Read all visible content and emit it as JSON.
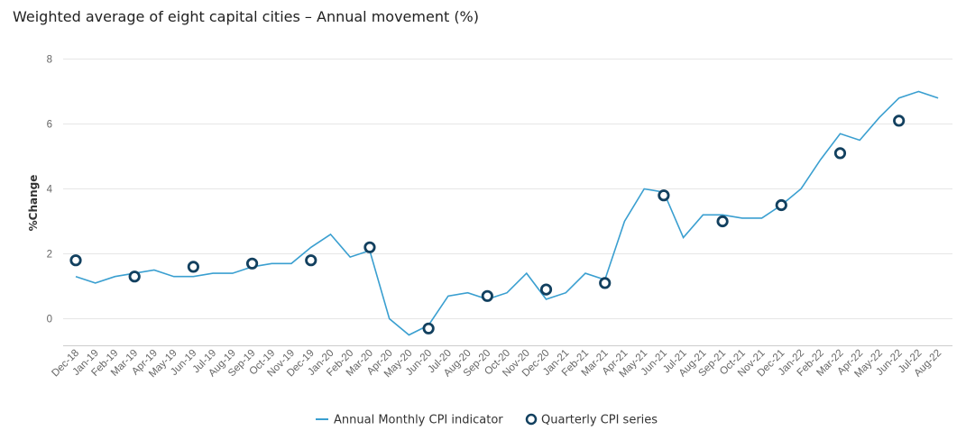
{
  "chart_data": {
    "type": "line",
    "title": "Weighted average of eight capital cities – Annual movement (%)",
    "xlabel": "",
    "ylabel": "%Change",
    "ylim": [
      -0.8,
      8
    ],
    "yticks": [
      0,
      2,
      4,
      6,
      8
    ],
    "grid": true,
    "legend_placement": "bottom-center",
    "categories": [
      "Dec-18",
      "Jan-19",
      "Feb-19",
      "Mar-19",
      "Apr-19",
      "May-19",
      "Jun-19",
      "Jul-19",
      "Aug-19",
      "Sep-19",
      "Oct-19",
      "Nov-19",
      "Dec-19",
      "Jan-20",
      "Feb-20",
      "Mar-20",
      "Apr-20",
      "May-20",
      "Jun-20",
      "Jul-20",
      "Aug-20",
      "Sep-20",
      "Oct-20",
      "Nov-20",
      "Dec-20",
      "Jan-21",
      "Feb-21",
      "Mar-21",
      "Apr-21",
      "May-21",
      "Jun-21",
      "Jul-21",
      "Aug-21",
      "Sep-21",
      "Oct-21",
      "Nov-21",
      "Dec-21",
      "Jan-22",
      "Feb-22",
      "Mar-22",
      "Apr-22",
      "May-22",
      "Jun-22",
      "Jul-22",
      "Aug-22"
    ],
    "series": [
      {
        "name": "Annual Monthly CPI indicator",
        "kind": "line",
        "color": "#3a9fd0",
        "values": [
          1.3,
          1.1,
          1.3,
          1.4,
          1.5,
          1.3,
          1.3,
          1.4,
          1.4,
          1.6,
          1.7,
          1.7,
          2.2,
          2.6,
          1.9,
          2.1,
          0.0,
          -0.5,
          -0.2,
          0.7,
          0.8,
          0.6,
          0.8,
          1.4,
          0.6,
          0.8,
          1.4,
          1.2,
          3.0,
          4.0,
          3.9,
          2.5,
          3.2,
          3.2,
          3.1,
          3.1,
          3.5,
          4.0,
          4.9,
          5.7,
          5.5,
          6.2,
          6.8,
          7.0,
          6.8
        ]
      },
      {
        "name": "Quarterly CPI series",
        "kind": "marker",
        "color": "#12405f",
        "points": [
          {
            "x": "Dec-18",
            "y": 1.8
          },
          {
            "x": "Mar-19",
            "y": 1.3
          },
          {
            "x": "Jun-19",
            "y": 1.6
          },
          {
            "x": "Sep-19",
            "y": 1.7
          },
          {
            "x": "Dec-19",
            "y": 1.8
          },
          {
            "x": "Mar-20",
            "y": 2.2
          },
          {
            "x": "Jun-20",
            "y": -0.3
          },
          {
            "x": "Sep-20",
            "y": 0.7
          },
          {
            "x": "Dec-20",
            "y": 0.9
          },
          {
            "x": "Mar-21",
            "y": 1.1
          },
          {
            "x": "Jun-21",
            "y": 3.8
          },
          {
            "x": "Sep-21",
            "y": 3.0
          },
          {
            "x": "Dec-21",
            "y": 3.5
          },
          {
            "x": "Mar-22",
            "y": 5.1
          },
          {
            "x": "Jun-22",
            "y": 6.1
          }
        ]
      }
    ]
  }
}
